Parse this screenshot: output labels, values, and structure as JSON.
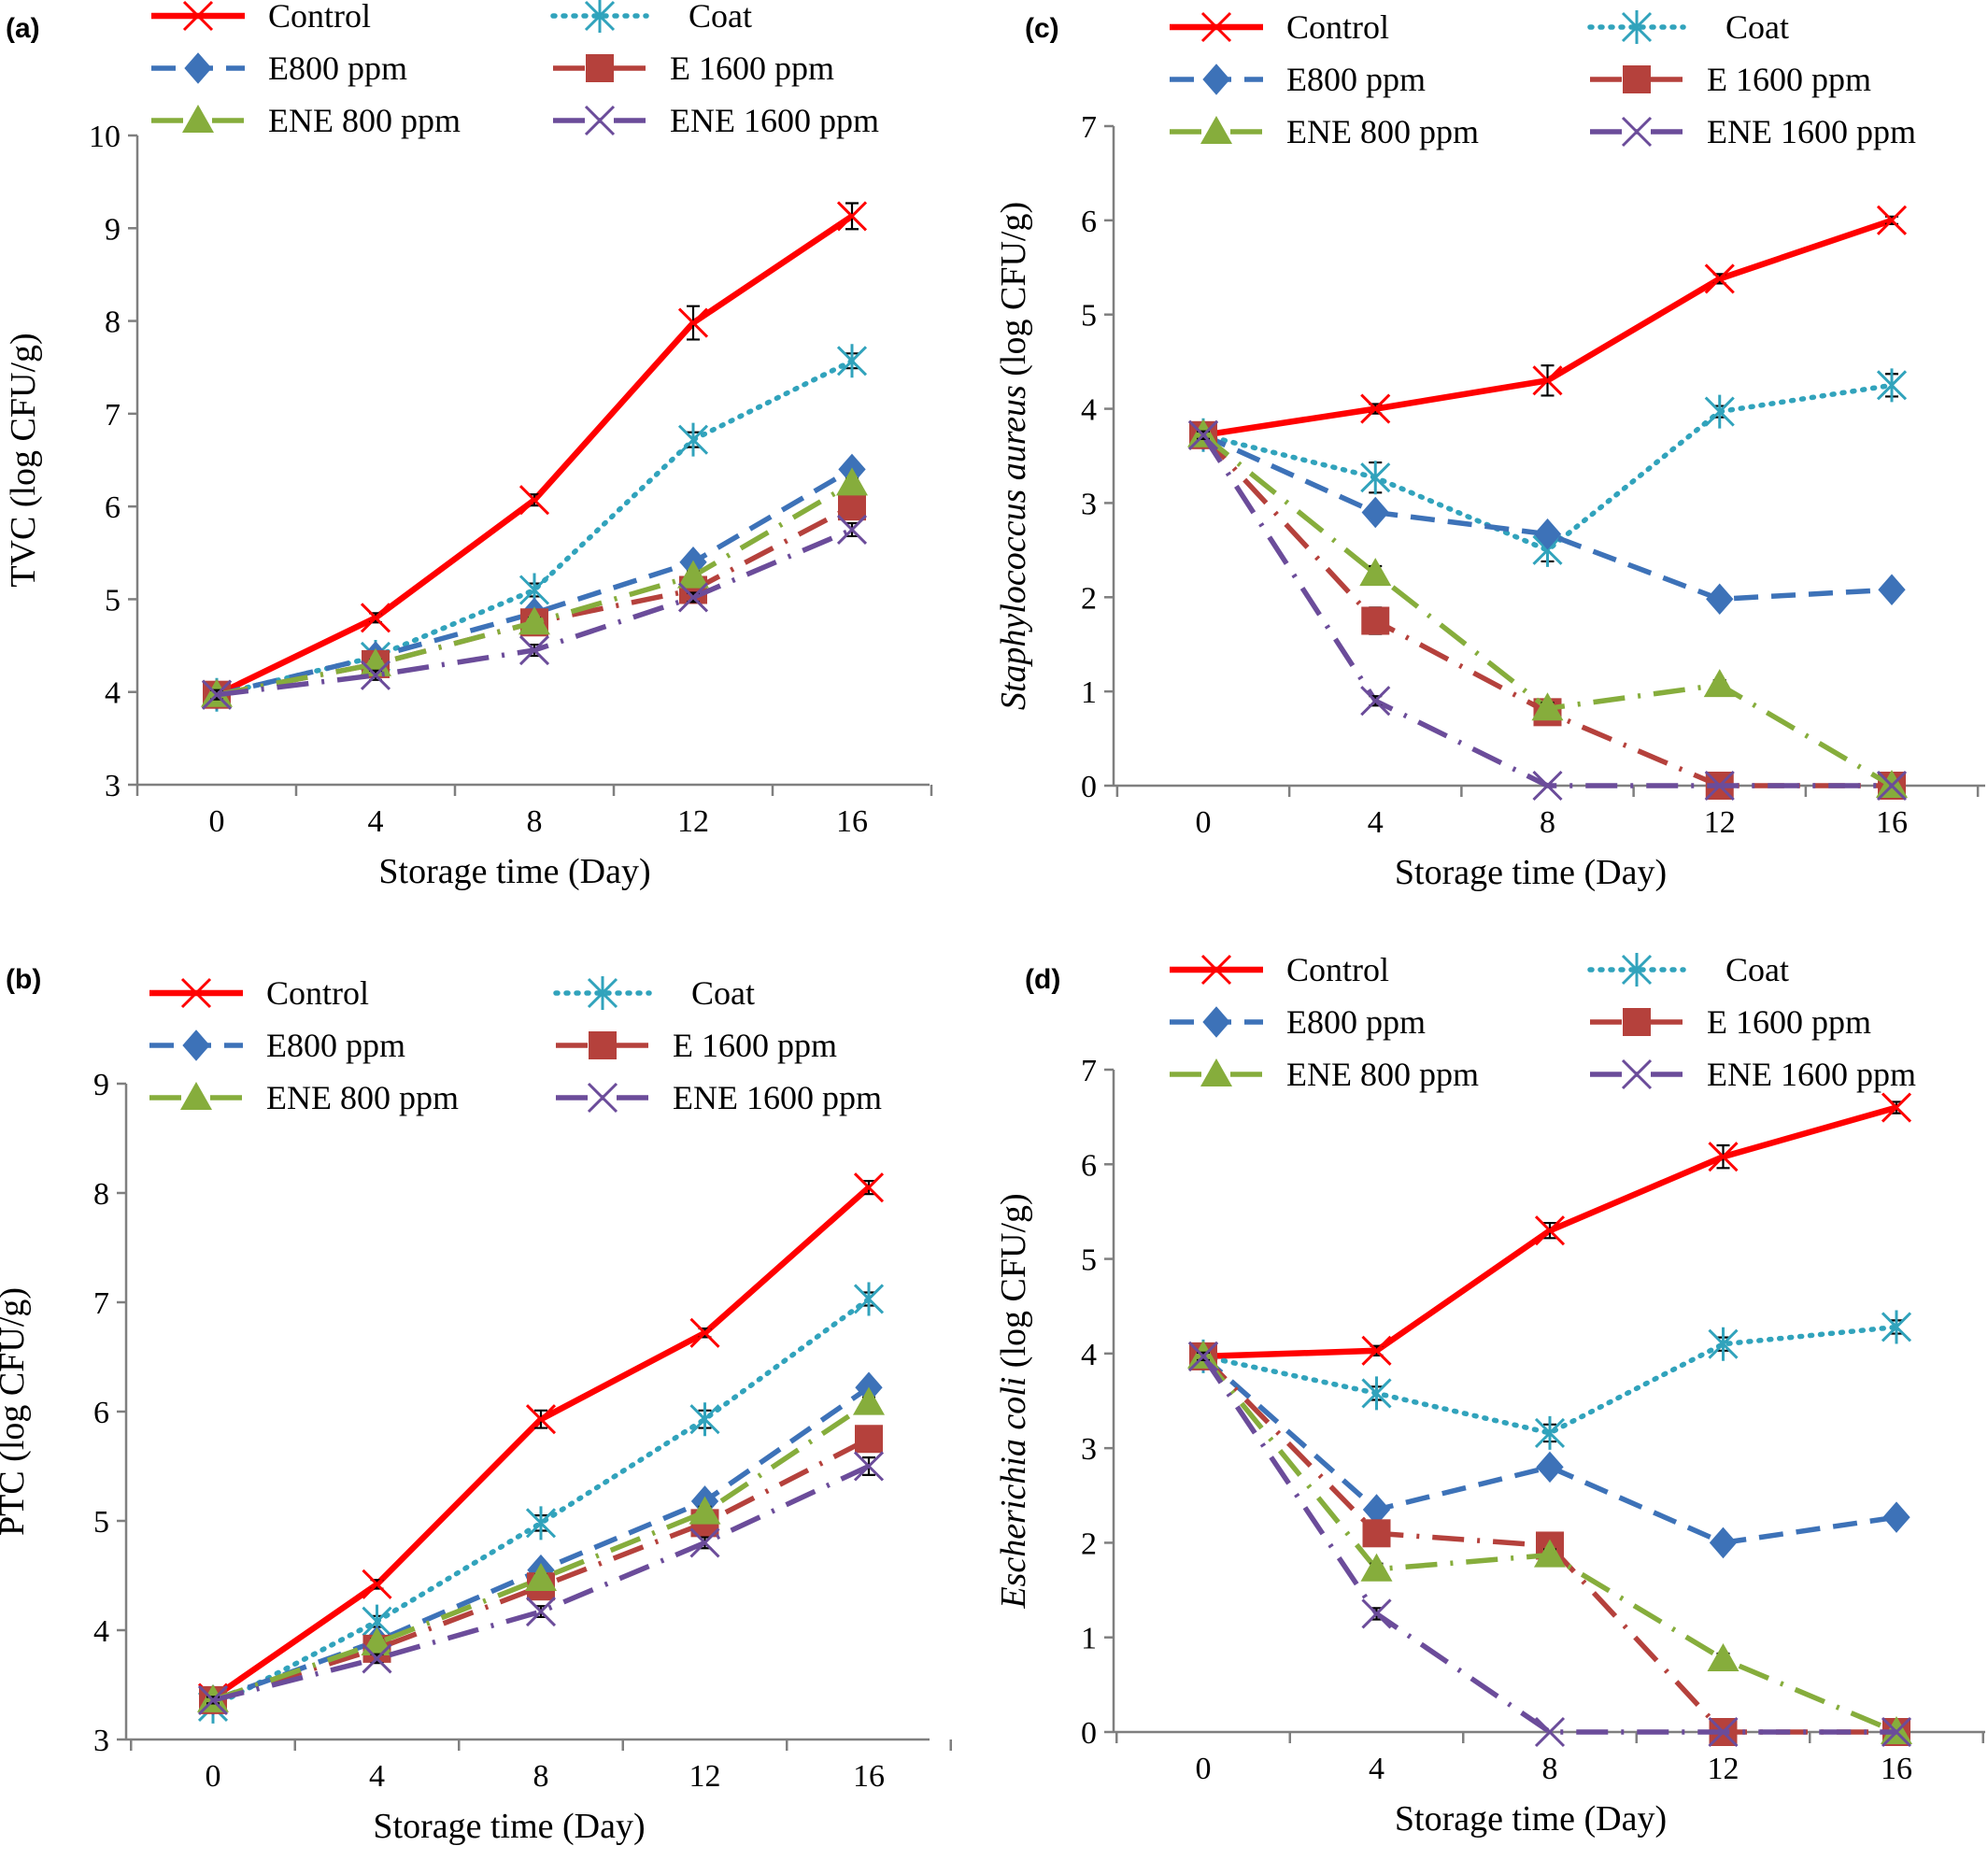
{
  "chart_data": [
    {
      "type": "line",
      "panel": "(a)",
      "xlabel": "Storage time (Day)",
      "ylabel": "TVC (log CFU/g)",
      "ylabel_italic": "",
      "x": [
        0,
        4,
        8,
        12,
        16
      ],
      "xticks": [
        "0",
        "4",
        "8",
        "12",
        "16"
      ],
      "ylim": [
        3,
        10
      ],
      "yticks": [
        "3",
        "4",
        "5",
        "6",
        "7",
        "8",
        "9",
        "10"
      ],
      "grid": false,
      "legend": "top, 2 columns",
      "series": [
        {
          "name": "Control",
          "values": [
            3.97,
            4.8,
            6.07,
            7.98,
            9.13
          ],
          "errors": [
            0.05,
            0.05,
            0.06,
            0.18,
            0.14
          ]
        },
        {
          "name": "Coat",
          "values": [
            3.97,
            4.38,
            5.1,
            6.72,
            7.57
          ],
          "errors": [
            0.05,
            0.05,
            0.07,
            0.08,
            0.08
          ]
        },
        {
          "name": "E800 ppm",
          "values": [
            3.97,
            4.38,
            4.85,
            5.4,
            6.4
          ],
          "errors": [
            0.05,
            0.05,
            0.05,
            0.05,
            0.05
          ]
        },
        {
          "name": "E 1600 ppm",
          "values": [
            3.97,
            4.3,
            4.75,
            5.1,
            6.0
          ],
          "errors": [
            0.05,
            0.05,
            0.05,
            0.05,
            0.05
          ]
        },
        {
          "name": "ENE 800 ppm",
          "values": [
            3.97,
            4.3,
            4.75,
            5.25,
            6.25
          ],
          "errors": [
            0.05,
            0.05,
            0.05,
            0.05,
            0.05
          ]
        },
        {
          "name": "ENE 1600 ppm",
          "values": [
            3.97,
            4.18,
            4.45,
            5.02,
            5.75
          ],
          "errors": [
            0.05,
            0.05,
            0.06,
            0.05,
            0.07
          ]
        }
      ]
    },
    {
      "type": "line",
      "panel": "(b)",
      "xlabel": "Storage time (Day)",
      "ylabel": "PTC (log CFU/g)",
      "ylabel_italic": "",
      "x": [
        0,
        4,
        8,
        12,
        16
      ],
      "xticks": [
        "0",
        "4",
        "8",
        "12",
        "16"
      ],
      "ylim": [
        3,
        9
      ],
      "yticks": [
        "3",
        "4",
        "5",
        "6",
        "7",
        "8",
        "9"
      ],
      "grid": false,
      "legend": "top, 2 columns",
      "series": [
        {
          "name": "Control",
          "values": [
            3.38,
            4.42,
            5.93,
            6.72,
            8.05
          ],
          "errors": [
            0.03,
            0.04,
            0.08,
            0.04,
            0.06
          ]
        },
        {
          "name": "Coat",
          "values": [
            3.3,
            4.08,
            4.98,
            5.93,
            7.03
          ],
          "errors": [
            0.03,
            0.05,
            0.07,
            0.08,
            0.06
          ]
        },
        {
          "name": "E800 ppm",
          "values": [
            3.36,
            3.9,
            4.55,
            5.18,
            6.22
          ],
          "errors": [
            0.03,
            0.04,
            0.04,
            0.05,
            0.05
          ]
        },
        {
          "name": "E 1600 ppm",
          "values": [
            3.36,
            3.83,
            4.4,
            4.98,
            5.75
          ],
          "errors": [
            0.03,
            0.04,
            0.04,
            0.05,
            0.07
          ]
        },
        {
          "name": "ENE 800 ppm",
          "values": [
            3.36,
            3.88,
            4.47,
            5.08,
            6.08
          ],
          "errors": [
            0.03,
            0.04,
            0.04,
            0.05,
            0.05
          ]
        },
        {
          "name": "ENE 1600 ppm",
          "values": [
            3.36,
            3.74,
            4.17,
            4.8,
            5.5
          ],
          "errors": [
            0.03,
            0.04,
            0.05,
            0.05,
            0.08
          ]
        }
      ]
    },
    {
      "type": "line",
      "panel": "(c)",
      "xlabel": "Storage time (Day)",
      "ylabel": " (log CFU/g)",
      "ylabel_italic": "Staphylococcus aureus",
      "x": [
        0,
        4,
        8,
        12,
        16
      ],
      "xticks": [
        "0",
        "4",
        "8",
        "12",
        "16"
      ],
      "ylim": [
        0,
        7
      ],
      "yticks": [
        "0",
        "1",
        "2",
        "3",
        "4",
        "5",
        "6",
        "7"
      ],
      "grid": false,
      "legend": "top, 2 columns",
      "series": [
        {
          "name": "Control",
          "values": [
            3.72,
            4.0,
            4.3,
            5.38,
            6.0
          ],
          "errors": [
            0.04,
            0.05,
            0.16,
            0.05,
            0.04
          ]
        },
        {
          "name": "Coat",
          "values": [
            3.72,
            3.27,
            2.5,
            3.97,
            4.25
          ],
          "errors": [
            0.04,
            0.16,
            0.12,
            0.06,
            0.12
          ]
        },
        {
          "name": "E800 ppm",
          "values": [
            3.72,
            2.9,
            2.67,
            1.98,
            2.08
          ],
          "errors": [
            0.04,
            0.06,
            0.06,
            0.05,
            0.05
          ]
        },
        {
          "name": "E 1600 ppm",
          "values": [
            3.72,
            1.75,
            0.78,
            0.0,
            0.0
          ],
          "errors": [
            0.04,
            0.14,
            0.06,
            0.0,
            0.0
          ]
        },
        {
          "name": "ENE 800 ppm",
          "values": [
            3.72,
            2.25,
            0.82,
            1.07,
            0.0
          ],
          "errors": [
            0.04,
            0.08,
            0.06,
            0.05,
            0.0
          ]
        },
        {
          "name": "ENE 1600 ppm",
          "values": [
            3.72,
            0.9,
            0.0,
            0.0,
            0.0
          ],
          "errors": [
            0.04,
            0.05,
            0.0,
            0.0,
            0.0
          ]
        }
      ]
    },
    {
      "type": "line",
      "panel": "(d)",
      "xlabel": "Storage time (Day)",
      "ylabel": " (log CFU/g)",
      "ylabel_italic": "Escherichia coli",
      "x": [
        0,
        4,
        8,
        12,
        16
      ],
      "xticks": [
        "0",
        "4",
        "8",
        "12",
        "16"
      ],
      "ylim": [
        0,
        7
      ],
      "yticks": [
        "0",
        "1",
        "2",
        "3",
        "4",
        "5",
        "6",
        "7"
      ],
      "grid": false,
      "legend": "top, 2 columns",
      "series": [
        {
          "name": "Control",
          "values": [
            3.97,
            4.03,
            5.3,
            6.08,
            6.6
          ],
          "errors": [
            0.04,
            0.05,
            0.08,
            0.12,
            0.06
          ]
        },
        {
          "name": "Coat",
          "values": [
            3.97,
            3.58,
            3.16,
            4.1,
            4.28
          ],
          "errors": [
            0.04,
            0.07,
            0.09,
            0.07,
            0.07
          ]
        },
        {
          "name": "E800 ppm",
          "values": [
            3.97,
            2.35,
            2.8,
            2.0,
            2.27
          ],
          "errors": [
            0.04,
            0.05,
            0.05,
            0.05,
            0.05
          ]
        },
        {
          "name": "E 1600 ppm",
          "values": [
            3.97,
            2.1,
            1.97,
            0.0,
            0.0
          ],
          "errors": [
            0.04,
            0.08,
            0.06,
            0.0,
            0.0
          ]
        },
        {
          "name": "ENE 800 ppm",
          "values": [
            3.97,
            1.72,
            1.87,
            0.77,
            0.0
          ],
          "errors": [
            0.04,
            0.06,
            0.06,
            0.06,
            0.0
          ]
        },
        {
          "name": "ENE 1600 ppm",
          "values": [
            3.97,
            1.25,
            0.0,
            0.0,
            0.0
          ],
          "errors": [
            0.04,
            0.06,
            0.0,
            0.0,
            0.0
          ]
        }
      ]
    }
  ],
  "series_styles": [
    {
      "color": "#ff0000",
      "dash": "solid",
      "marker": "x"
    },
    {
      "color": "#31a3bc",
      "dash": "dotted",
      "marker": "asterisk"
    },
    {
      "color": "#3d72b8",
      "dash": "dashed",
      "marker": "diamond"
    },
    {
      "color": "#b5413c",
      "dash": "long-dash-dot",
      "marker": "square"
    },
    {
      "color": "#86ad3c",
      "dash": "long-dash-dot",
      "marker": "triangle"
    },
    {
      "color": "#6b4c9a",
      "dash": "long-dash-dot",
      "marker": "x"
    }
  ],
  "axis_color": "#7f7f7f",
  "errorbar_color": "#000000"
}
